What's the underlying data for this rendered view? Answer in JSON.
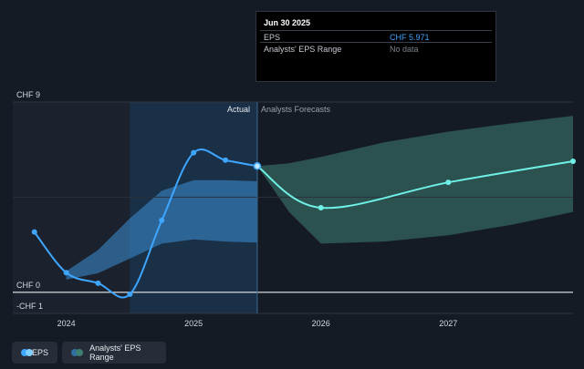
{
  "colors": {
    "background": "#151b24",
    "eps_line": "#3ea6ff",
    "forecast_line": "#6ff0e6",
    "analyst_band_past": "#3c8fd6",
    "analyst_band_forecast": "#3e7f72",
    "tooltip_eps_value": "#3ea6ff",
    "tooltip_no_data": "#7b828c"
  },
  "tooltip": {
    "date": "Jun 30 2025",
    "rows": [
      {
        "label": "EPS",
        "value": "CHF 5.971"
      },
      {
        "label": "Analysts' EPS Range",
        "value": "No data"
      }
    ]
  },
  "section_labels": {
    "actual": "Actual",
    "forecast": "Analysts Forecasts"
  },
  "legend": {
    "eps": {
      "label": "EPS",
      "icon": "eps-legend-dots-icon"
    },
    "range": {
      "label": "Analysts' EPS Range",
      "icon": "range-legend-dots-icon"
    }
  },
  "chart_data": {
    "type": "line",
    "ylim": [
      -1,
      9
    ],
    "yticks": [
      {
        "value": 9,
        "label": "CHF 9"
      },
      {
        "value": 0,
        "label": "CHF 0"
      },
      {
        "value": -1,
        "label": "-CHF 1"
      }
    ],
    "xlim": [
      2023.58,
      2027.98
    ],
    "xticks": [
      {
        "value": 2024,
        "label": "2024"
      },
      {
        "value": 2025,
        "label": "2025"
      },
      {
        "value": 2026,
        "label": "2026"
      },
      {
        "value": 2027,
        "label": "2027"
      }
    ],
    "actual_until": 2025.5,
    "highlight_from": 2024.5,
    "series": [
      {
        "name": "EPS",
        "x": [
          2023.75,
          2024.0,
          2024.25,
          2024.5,
          2024.75,
          2025.0,
          2025.25,
          2025.5
        ],
        "y": [
          2.85,
          0.93,
          0.43,
          -0.09,
          3.4,
          6.6,
          6.25,
          5.971
        ]
      },
      {
        "name": "EPS forecast",
        "x": [
          2025.5,
          2026.0,
          2027.0,
          2027.98
        ],
        "y": [
          5.971,
          4.0,
          5.2,
          6.2
        ]
      }
    ],
    "range_band_past": {
      "x": [
        2024.0,
        2024.25,
        2024.5,
        2024.75,
        2025.0,
        2025.25,
        2025.5
      ],
      "high": [
        1.0,
        2.0,
        3.5,
        4.8,
        5.3,
        5.3,
        5.25
      ],
      "low": [
        0.6,
        0.9,
        1.6,
        2.3,
        2.5,
        2.4,
        2.35
      ]
    },
    "range_band_forecast": {
      "x": [
        2025.5,
        2025.75,
        2026.0,
        2026.5,
        2027.0,
        2027.5,
        2027.98
      ],
      "high": [
        5.971,
        6.1,
        6.4,
        7.1,
        7.6,
        8.0,
        8.35
      ],
      "low": [
        5.971,
        3.8,
        2.3,
        2.4,
        2.7,
        3.2,
        3.8
      ]
    }
  }
}
